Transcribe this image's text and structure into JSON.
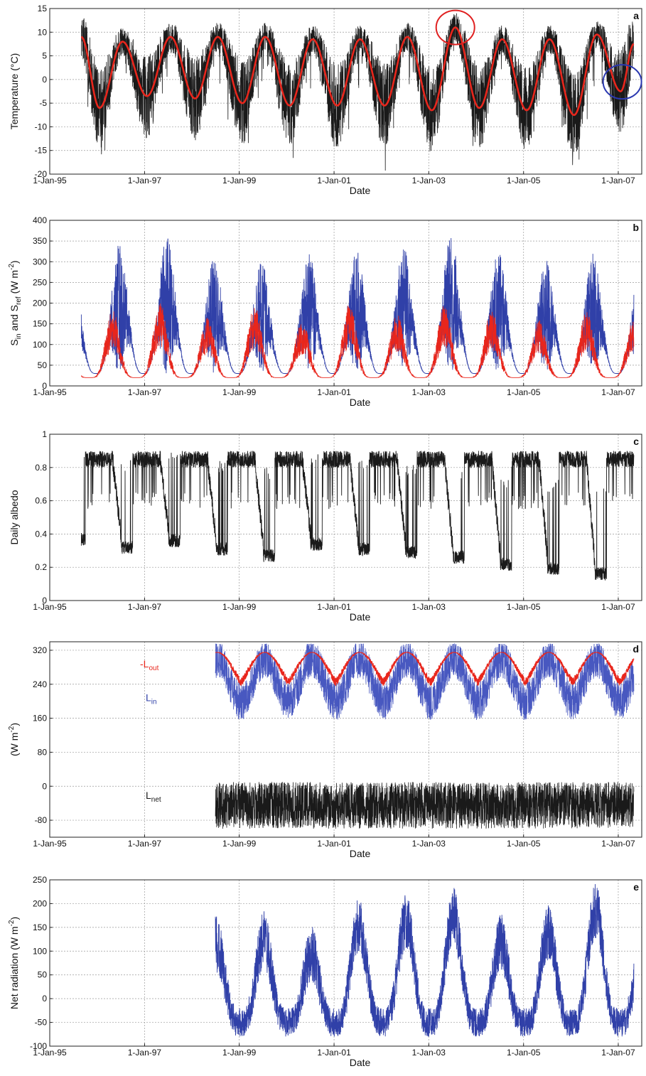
{
  "colors": {
    "black": "#1a1a1a",
    "red": "#e8261c",
    "blue": "#3040a8",
    "blue_light": "#4858c0",
    "grid": "#9a9a9a",
    "red_circle": "#e02020",
    "blue_circle": "#2a38b0"
  },
  "x_axis": {
    "label": "Date",
    "ticks": [
      "1-Jan-95",
      "1-Jan-97",
      "1-Jan-99",
      "1-Jan-01",
      "1-Jan-03",
      "1-Jan-05",
      "1-Jan-07"
    ],
    "range": [
      "1995-01-01",
      "2007-07-01"
    ]
  },
  "chart_data": [
    {
      "id": "a",
      "type": "line",
      "panel_letter": "a",
      "ylabel": "Temperature (°C)",
      "ylim": [
        -20,
        15
      ],
      "yticks": [
        15,
        10,
        5,
        0,
        -5,
        -10,
        -15,
        -20
      ],
      "grid": true,
      "date_range": [
        "1995-09-01",
        "2007-05-01"
      ],
      "series": [
        {
          "role": "daily temperature",
          "color": "black",
          "kind": "daily",
          "values_by_date": {
            "mean_amplitude": 7.5,
            "mean": 1.5,
            "noise_amplitude": 8
          }
        },
        {
          "role": "smoothed temperature",
          "color": "red",
          "kind": "smooth",
          "extremes": [
            {
              "date": "1995-09-01",
              "value": 9
            },
            {
              "date": "1996-01-20",
              "value": -6
            },
            {
              "date": "1996-07-15",
              "value": 8
            },
            {
              "date": "1997-01-20",
              "value": -3.5
            },
            {
              "date": "1997-07-20",
              "value": 9
            },
            {
              "date": "1998-01-25",
              "value": -4
            },
            {
              "date": "1998-07-20",
              "value": 9
            },
            {
              "date": "1999-01-25",
              "value": -5
            },
            {
              "date": "1999-07-20",
              "value": 9
            },
            {
              "date": "2000-01-25",
              "value": -5.5
            },
            {
              "date": "2000-07-20",
              "value": 8.5
            },
            {
              "date": "2001-01-25",
              "value": -5.5
            },
            {
              "date": "2001-07-20",
              "value": 8.5
            },
            {
              "date": "2002-01-25",
              "value": -5.5
            },
            {
              "date": "2002-07-20",
              "value": 9
            },
            {
              "date": "2003-01-25",
              "value": -6.5
            },
            {
              "date": "2003-07-25",
              "value": 11
            },
            {
              "date": "2004-01-25",
              "value": -6
            },
            {
              "date": "2004-07-20",
              "value": 8.5
            },
            {
              "date": "2005-01-25",
              "value": -6.5
            },
            {
              "date": "2005-07-20",
              "value": 8.5
            },
            {
              "date": "2006-01-25",
              "value": -7.5
            },
            {
              "date": "2006-07-20",
              "value": 9.5
            },
            {
              "date": "2007-01-20",
              "value": -2.5
            },
            {
              "date": "2007-05-01",
              "value": 7.5
            }
          ]
        }
      ],
      "annotations": [
        {
          "shape": "circle",
          "color": "red",
          "date": "2003-07-25",
          "value": 11
        },
        {
          "shape": "circle",
          "color": "blue",
          "date": "2007-02-01",
          "value": -0.5
        }
      ]
    },
    {
      "id": "b",
      "type": "line",
      "panel_letter": "b",
      "ylabel_main": "S",
      "ylabel_sub1": "in",
      "ylabel_mid": " and S",
      "ylabel_sub2": "ref",
      "ylabel_unit": " (W m",
      "ylabel_sup": "-2",
      "ylabel_end": ")",
      "ylim": [
        0,
        400
      ],
      "yticks": [
        400,
        350,
        300,
        250,
        200,
        150,
        100,
        50,
        0
      ],
      "grid": true,
      "date_range": [
        "1995-09-01",
        "2007-05-01"
      ],
      "series": [
        {
          "role": "incoming shortwave",
          "color": "blue",
          "winter_min": 30,
          "summer_peaks": [
            {
              "date": "1996-06-21",
              "value": 345
            },
            {
              "date": "1997-06-21",
              "value": 360
            },
            {
              "date": "1998-06-21",
              "value": 310
            },
            {
              "date": "1999-06-21",
              "value": 300
            },
            {
              "date": "2000-06-21",
              "value": 320
            },
            {
              "date": "2001-06-21",
              "value": 330
            },
            {
              "date": "2002-06-21",
              "value": 335
            },
            {
              "date": "2003-06-21",
              "value": 370
            },
            {
              "date": "2004-06-21",
              "value": 325
            },
            {
              "date": "2005-06-21",
              "value": 310
            },
            {
              "date": "2006-06-21",
              "value": 320
            },
            {
              "date": "2007-06-21",
              "value": 300
            }
          ]
        },
        {
          "role": "reflected shortwave",
          "color": "red",
          "winter_min": 20,
          "summer_peaks": [
            {
              "date": "1996-04-15",
              "value": 185
            },
            {
              "date": "1997-04-15",
              "value": 200
            },
            {
              "date": "1998-04-15",
              "value": 165
            },
            {
              "date": "1999-04-15",
              "value": 195
            },
            {
              "date": "2000-04-15",
              "value": 160
            },
            {
              "date": "2001-04-15",
              "value": 200
            },
            {
              "date": "2002-04-15",
              "value": 175
            },
            {
              "date": "2003-04-15",
              "value": 195
            },
            {
              "date": "2004-04-15",
              "value": 185
            },
            {
              "date": "2005-04-15",
              "value": 160
            },
            {
              "date": "2006-04-15",
              "value": 180
            },
            {
              "date": "2007-04-15",
              "value": 165
            }
          ]
        }
      ]
    },
    {
      "id": "c",
      "type": "line",
      "panel_letter": "c",
      "ylabel": "Daily albedo",
      "ylim": [
        0,
        1
      ],
      "yticks": [
        "1",
        "0.8",
        "0.6",
        "0.4",
        "0.2",
        "0"
      ],
      "grid": true,
      "date_range": [
        "1995-09-01",
        "2007-05-01"
      ],
      "series": [
        {
          "role": "albedo",
          "color": "black",
          "winter_level": 0.85,
          "summer_minima": [
            {
              "date": "1995-09-01",
              "value": 0.33
            },
            {
              "date": "1996-08-15",
              "value": 0.28
            },
            {
              "date": "1997-08-15",
              "value": 0.32
            },
            {
              "date": "1998-08-15",
              "value": 0.27
            },
            {
              "date": "1999-08-15",
              "value": 0.23
            },
            {
              "date": "2000-08-15",
              "value": 0.3
            },
            {
              "date": "2001-08-15",
              "value": 0.27
            },
            {
              "date": "2002-08-15",
              "value": 0.25
            },
            {
              "date": "2003-08-15",
              "value": 0.22
            },
            {
              "date": "2004-08-15",
              "value": 0.18
            },
            {
              "date": "2005-08-15",
              "value": 0.15
            },
            {
              "date": "2006-08-15",
              "value": 0.12
            },
            {
              "date": "2007-05-01",
              "value": 0.15
            }
          ]
        }
      ]
    },
    {
      "id": "d",
      "type": "line",
      "panel_letter": "d",
      "ylabel_unit": "(W m",
      "ylabel_sup": "-2",
      "ylabel_end": ")",
      "ylim": [
        -120,
        340
      ],
      "yticks": [
        "320",
        "240",
        "160",
        "80",
        "0",
        "-80"
      ],
      "grid": true,
      "date_range": [
        "1998-07-01",
        "2007-05-01"
      ],
      "series": [
        {
          "role": "outgoing longwave",
          "color": "red",
          "label_main": "-L",
          "label_sub": "out",
          "summer_level": 315,
          "winter_level": 245
        },
        {
          "role": "incoming longwave",
          "color": "blue",
          "label_main": "L",
          "label_sub": "in",
          "summer_level": 300,
          "winter_level": 200
        },
        {
          "role": "net longwave",
          "color": "black",
          "label_main": "L",
          "label_sub": "net",
          "mean": -45,
          "range": [
            -95,
            15
          ]
        }
      ]
    },
    {
      "id": "e",
      "type": "line",
      "panel_letter": "e",
      "ylabel_main": "Net radiation (W m",
      "ylabel_sup": "-2",
      "ylabel_end": ")",
      "ylim": [
        -100,
        250
      ],
      "yticks": [
        250,
        200,
        150,
        100,
        50,
        0,
        -50,
        -100
      ],
      "grid": true,
      "date_range": [
        "1998-07-01",
        "2007-05-01"
      ],
      "series": [
        {
          "role": "net radiation",
          "color": "blue",
          "summer_peaks": [
            {
              "date": "1998-07-01",
              "value": 175
            },
            {
              "date": "1999-07-01",
              "value": 185
            },
            {
              "date": "2000-07-01",
              "value": 155
            },
            {
              "date": "2001-07-01",
              "value": 215
            },
            {
              "date": "2002-07-01",
              "value": 225
            },
            {
              "date": "2003-07-01",
              "value": 235
            },
            {
              "date": "2004-07-01",
              "value": 180
            },
            {
              "date": "2005-07-01",
              "value": 200
            },
            {
              "date": "2006-07-01",
              "value": 245
            },
            {
              "date": "2007-05-01",
              "value": 170
            }
          ],
          "winter_min": -85
        }
      ]
    }
  ]
}
